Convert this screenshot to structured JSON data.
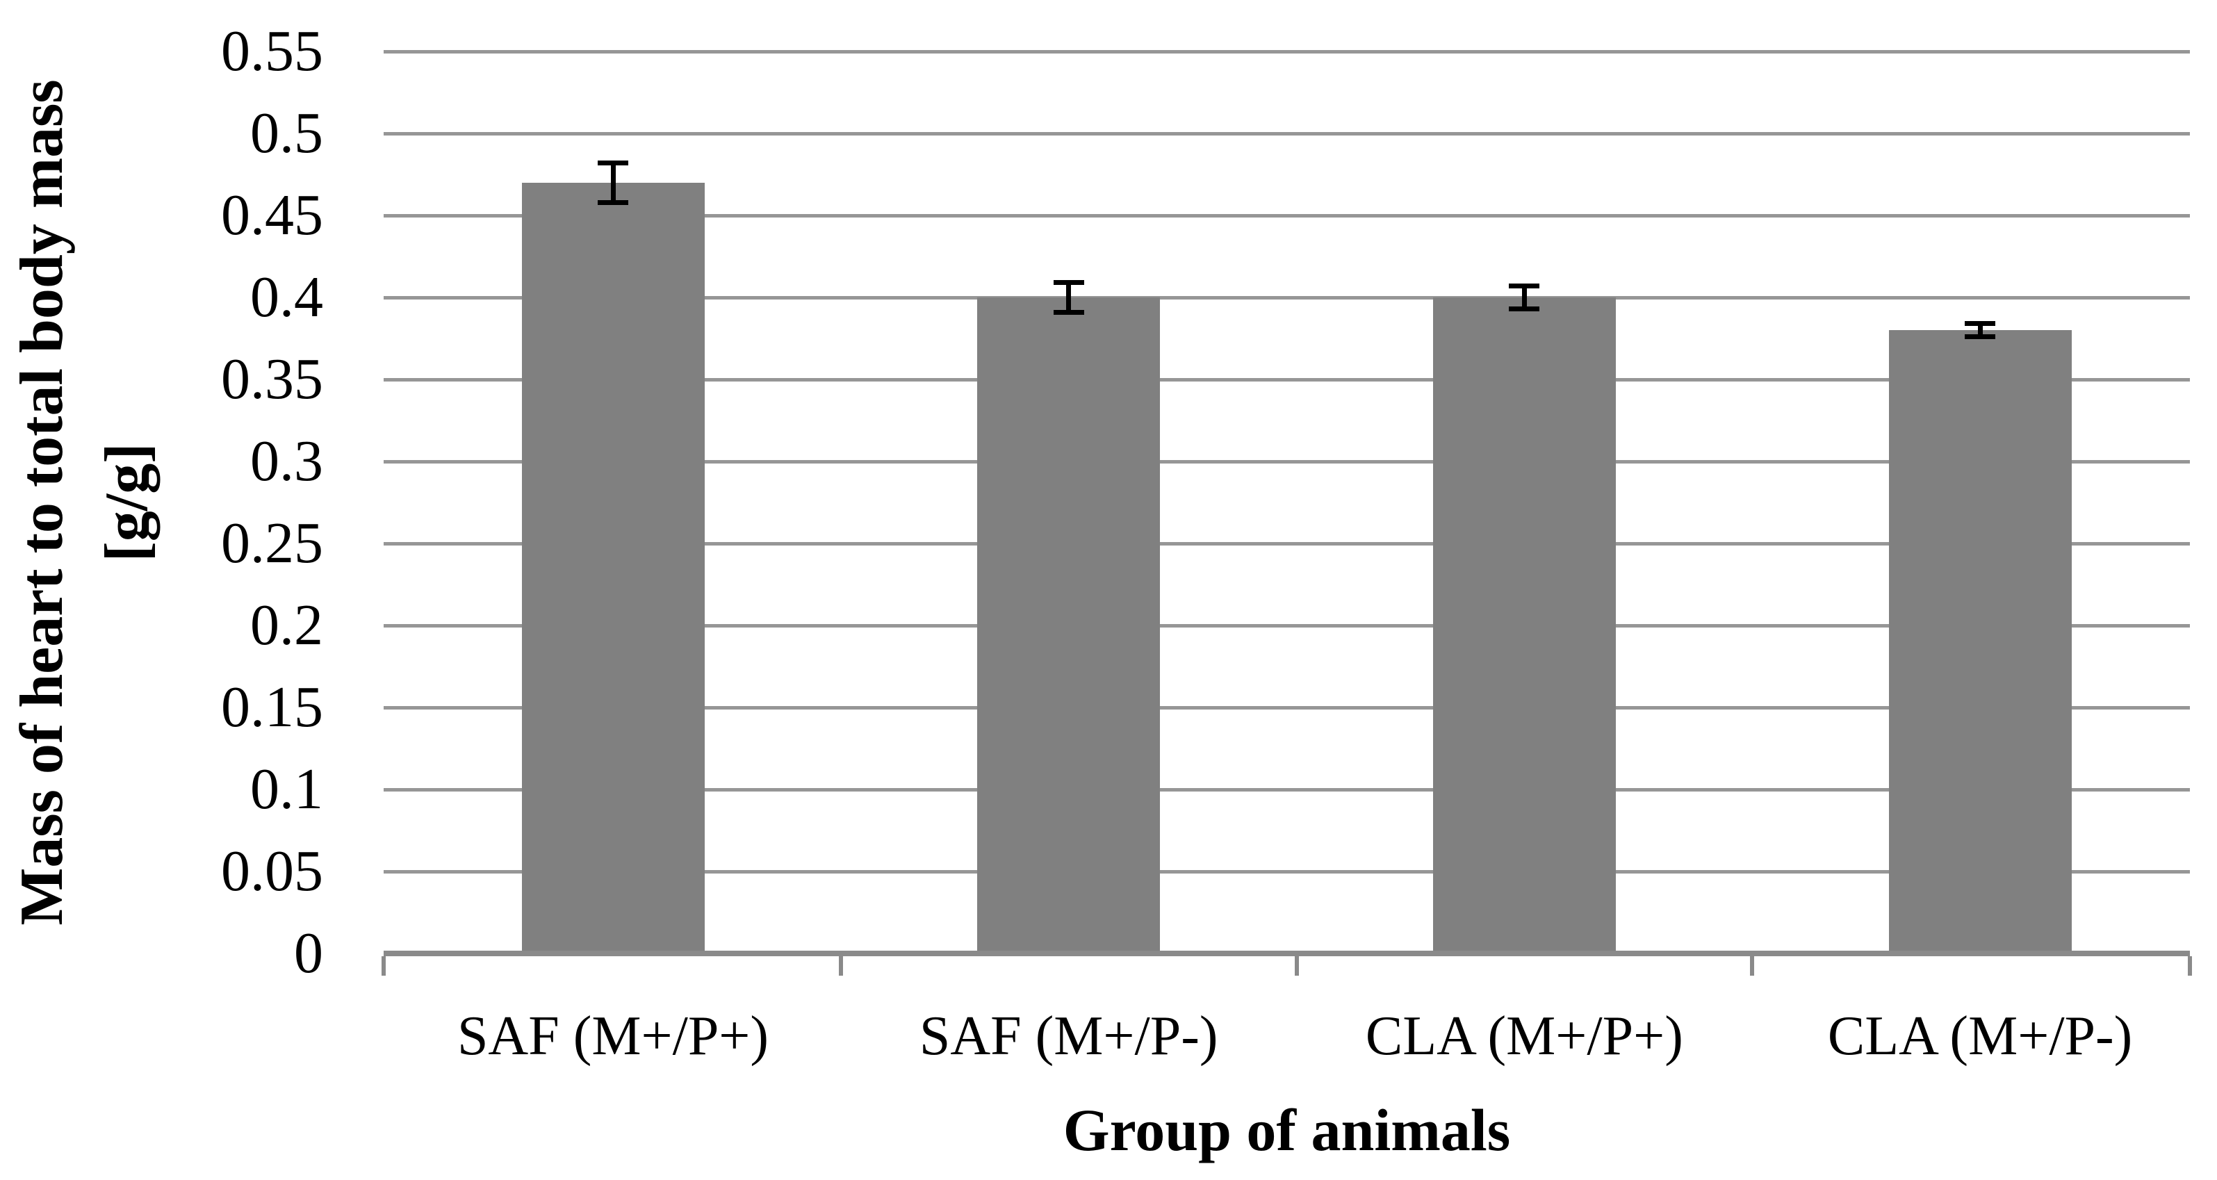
{
  "figure": {
    "background_color": "#ffffff",
    "text_color": "#000000"
  },
  "chart_data": {
    "type": "bar",
    "title": "",
    "categories": [
      "SAF (M+/P+)",
      "SAF (M+/P-)",
      "CLA (M+/P+)",
      "CLA (M+/P-)"
    ],
    "values": [
      0.47,
      0.4,
      0.4,
      0.38
    ],
    "errors": [
      0.012,
      0.009,
      0.007,
      0.004
    ],
    "xlabel": "Group of animals",
    "ylabel": "Mass of heart to total body mass",
    "ylabel_units": "[g/g]",
    "ylim": [
      0,
      0.55
    ],
    "ytick_step": 0.05,
    "yticks": [
      {
        "label": "0",
        "value": 0
      },
      {
        "label": "0.05",
        "value": 0.05
      },
      {
        "label": "0.1",
        "value": 0.1
      },
      {
        "label": "0.15",
        "value": 0.15
      },
      {
        "label": "0.2",
        "value": 0.2
      },
      {
        "label": "0.25",
        "value": 0.25
      },
      {
        "label": "0.3",
        "value": 0.3
      },
      {
        "label": "0.35",
        "value": 0.35
      },
      {
        "label": "0.4",
        "value": 0.4
      },
      {
        "label": "0.45",
        "value": 0.45
      },
      {
        "label": "0.5",
        "value": 0.5
      },
      {
        "label": "0.55",
        "value": 0.55
      }
    ],
    "grid": "horizontal",
    "legend": "none",
    "bar_color": "#808080",
    "gridline_color": "#969696",
    "axis_color": "#8a8a8a",
    "error_bar_color": "#000000"
  }
}
